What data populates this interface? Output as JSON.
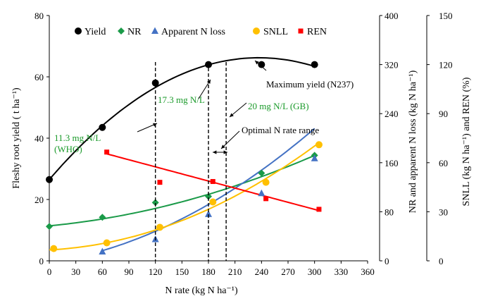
{
  "chart_data": {
    "type": "scatter",
    "x_axis": {
      "label": "N rate (kg N ha⁻¹)",
      "range": [
        0,
        360
      ],
      "ticks": [
        0,
        30,
        60,
        90,
        120,
        150,
        180,
        210,
        240,
        270,
        300,
        330,
        360
      ]
    },
    "y_left": {
      "label": "Fleshy root yield  ( t ha⁻¹)",
      "range": [
        0,
        80
      ],
      "ticks": [
        0,
        20,
        40,
        60,
        80
      ]
    },
    "y_right1": {
      "label": "NR and apparent N loss (kg N ha⁻¹)",
      "range": [
        0,
        400
      ],
      "ticks": [
        0,
        80,
        160,
        240,
        320,
        400
      ]
    },
    "y_right2": {
      "label": "SNLL (kg N ha⁻¹) and REN (%)",
      "range": [
        0,
        150
      ],
      "ticks": [
        0,
        30,
        60,
        90,
        120,
        150
      ]
    },
    "legend": [
      "Yield",
      "NR",
      "Apparent N loss",
      "SNLL",
      "REN"
    ],
    "legend_position": "top",
    "series": [
      {
        "name": "Yield",
        "axis": "y_left",
        "color": "#000000",
        "marker": "circle",
        "points": [
          [
            0,
            26.5
          ],
          [
            60,
            43.5
          ],
          [
            120,
            58
          ],
          [
            180,
            64
          ],
          [
            240,
            64
          ],
          [
            300,
            64
          ]
        ],
        "fit": {
          "type": "quadratic",
          "a": 26.5,
          "b": 0.3354,
          "c": -0.000708,
          "from": 0,
          "to": 300
        }
      },
      {
        "name": "NR",
        "axis": "y_right1",
        "color": "#1a9a48",
        "marker": "diamond",
        "points": [
          [
            0,
            56
          ],
          [
            60,
            71
          ],
          [
            120,
            95
          ],
          [
            180,
            105
          ],
          [
            240,
            143
          ],
          [
            300,
            172
          ]
        ],
        "fit": {
          "type": "quadratic",
          "a": 57,
          "b": 0.14,
          "c": 0.00081,
          "from": 0,
          "to": 300
        }
      },
      {
        "name": "Apparent N loss",
        "axis": "y_right1",
        "color": "#4472c4",
        "marker": "triangle",
        "points": [
          [
            60,
            15
          ],
          [
            120,
            35
          ],
          [
            180,
            76
          ],
          [
            240,
            110
          ],
          [
            300,
            167
          ]
        ],
        "fit": {
          "type": "quadratic",
          "a": -3,
          "b": 0.225,
          "c": 0.00168,
          "from": 60,
          "to": 300
        }
      },
      {
        "name": "SNLL",
        "axis": "y_right2",
        "color": "#ffc000",
        "marker": "circle",
        "points": [
          [
            5,
            7.5
          ],
          [
            65,
            11
          ],
          [
            125,
            20.5
          ],
          [
            185,
            36
          ],
          [
            245,
            48
          ],
          [
            305,
            71
          ]
        ],
        "fit": {
          "type": "quadratic",
          "a": 6.7,
          "b": 0.0272,
          "c": 0.000615,
          "from": 0,
          "to": 305
        }
      },
      {
        "name": "REN",
        "axis": "y_right2",
        "color": "#ff0000",
        "marker": "square",
        "points": [
          [
            65,
            66.5
          ],
          [
            125,
            48
          ],
          [
            185,
            48.5
          ],
          [
            245,
            38
          ],
          [
            305,
            31.5
          ]
        ],
        "fit": {
          "type": "linear",
          "a": 74.8,
          "b": -0.1445,
          "from": 65,
          "to": 305
        }
      }
    ],
    "annotations": [
      {
        "text": "11.3 mg N/L",
        "text2": "(WHO)",
        "x": 120,
        "color": "green"
      },
      {
        "text": "17.3 mg N/L",
        "x": 180,
        "color": "green"
      },
      {
        "text": "20 mg N/L (GB)",
        "x": 200,
        "color": "green"
      },
      {
        "text": "Optimal N rate range",
        "color": "black"
      },
      {
        "text": "Maximum yield (N237)",
        "color": "black"
      }
    ],
    "vertical_dashed_lines_x": [
      120,
      180,
      200
    ]
  }
}
